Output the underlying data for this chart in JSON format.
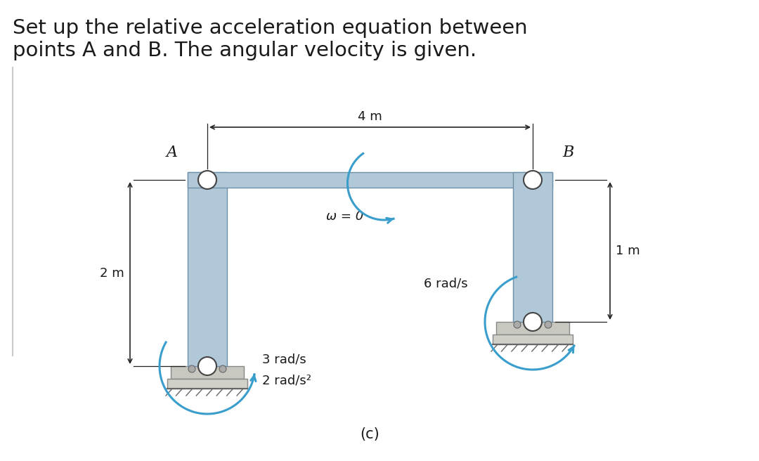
{
  "title_line1": "Set up the relative acceleration equation between",
  "title_line2": "points A and B. The angular velocity is given.",
  "title_fontsize": 21,
  "bg_color": "#ffffff",
  "text_color": "#1a1a1a",
  "beam_color": "#b0c8d8",
  "beam_edge_color": "#7090a8",
  "ground_top_color": "#c8c8c8",
  "ground_body_color": "#d8d8d0",
  "arrow_color": "#3a9ecc",
  "dim_color": "#222222",
  "label_A": "A",
  "label_B": "B",
  "label_4m": "4 m",
  "label_2m": "2 m",
  "label_1m": "1 m",
  "label_omega0": "ω = 0",
  "label_3rads": "3 rad/s",
  "label_2rads2": "2 rad/s²",
  "label_6rads": "6 rad/s",
  "label_c": "(c)"
}
